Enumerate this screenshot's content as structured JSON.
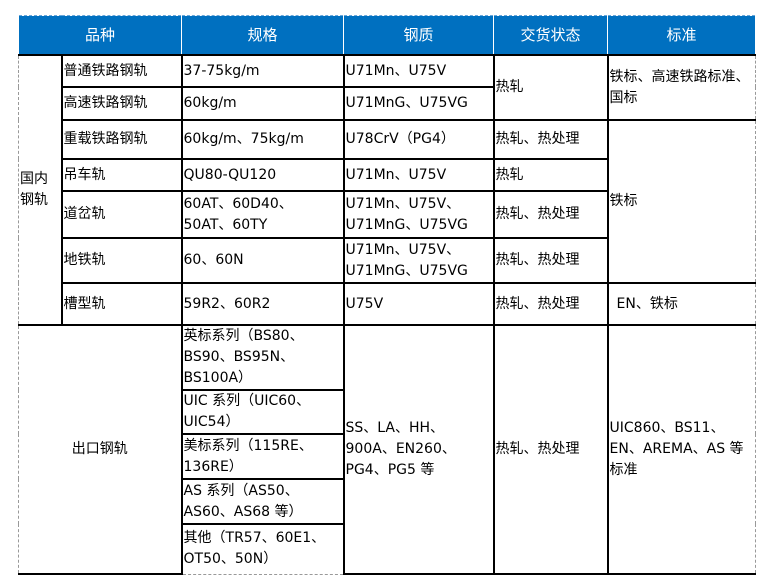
{
  "header": [
    "品种",
    "规格",
    "钢质",
    "交货状态",
    "标准"
  ],
  "domestic": {
    "group_label": "国内钢轨",
    "rows": [
      {
        "name": "普通铁路钢轨",
        "spec": "37-75kg/m",
        "steel": "U71Mn、U75V"
      },
      {
        "name": "高速铁路钢轨",
        "spec": "60kg/m",
        "steel": "U71MnG、U75VG"
      },
      {
        "name": "重载铁路钢轨",
        "spec": "60kg/m、75kg/m",
        "steel": "U78CrV（PG4）",
        "delivery": "热轧、热处理"
      },
      {
        "name": "吊车轨",
        "spec": "QU80-QU120",
        "steel": "U71Mn、U75V",
        "delivery": "热轧"
      },
      {
        "name": "道岔轨",
        "spec": "60AT、60D40、50AT、60TY",
        "steel": "U71Mn、U75V、U71MnG、U75VG",
        "delivery": "热轧、热处理"
      },
      {
        "name": "地铁轨",
        "spec": "60、60N",
        "steel": "U71Mn、U75V、U71MnG、U75VG",
        "delivery": "热轧、热处理"
      },
      {
        "name": "槽型轨",
        "spec": "59R2、60R2",
        "steel": "U75V",
        "delivery": "热轧、热处理",
        "standard": "EN、铁标"
      }
    ],
    "delivery_rows_1_2": "热轧",
    "standard_rows_1_2": "铁标、高速铁路标准、国标",
    "standard_rows_3_6": "铁标"
  },
  "export": {
    "label": "出口钢轨",
    "specs": [
      "英标系列（BS80、BS90、BS95N、BS100A）",
      "UIC 系列（UIC60、UIC54）",
      "美标系列（115RE、136RE）",
      "AS 系列（AS50、AS60、AS68 等）",
      "其他（TR57、60E1、OT50、50N）"
    ],
    "steel": "SS、LA、HH、900A、EN260、PG4、PG5 等",
    "delivery": "热轧、热处理",
    "standard": "UIC860、BS11、EN、AREMA、AS 等标准"
  },
  "colors": {
    "header_bg": "#0070c0",
    "header_text": "#ffffff"
  }
}
